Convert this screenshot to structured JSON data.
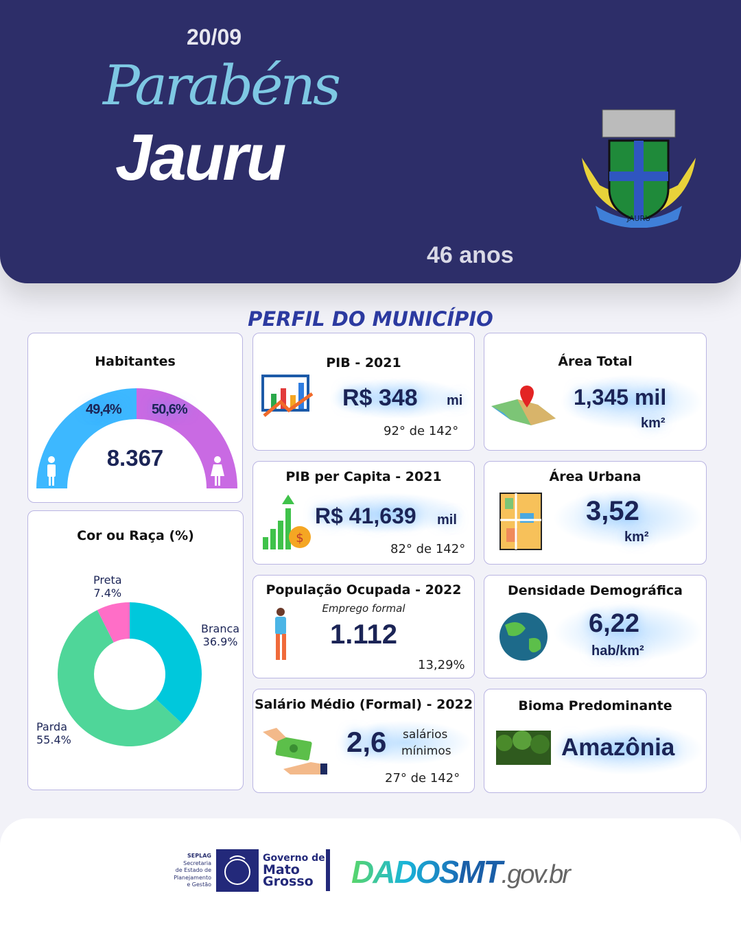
{
  "header": {
    "date": "20/09",
    "greeting": "Parabéns",
    "city": "Jauru",
    "anniversary": "46 anos",
    "crest_text": "JAURU"
  },
  "section_title": "PERFIL DO MUNICÍPIO",
  "habitantes": {
    "title": "Habitantes",
    "total": "8.367",
    "male_pct_label": "49,4%",
    "female_pct_label": "50,6%",
    "male_pct": 49.4,
    "female_pct": 50.6,
    "colors": {
      "male": "#3db8ff",
      "female": "#c96ae3"
    }
  },
  "raca": {
    "title": "Cor ou Raça (%)",
    "chart_data": {
      "type": "pie",
      "donut": true,
      "categories": [
        "Branca",
        "Parda",
        "Preta"
      ],
      "values": [
        36.9,
        55.4,
        7.4
      ],
      "labels": [
        "36.9%",
        "55.4%",
        "7.4%"
      ],
      "colors": [
        "#00c8dc",
        "#4fd699",
        "#ff6ec7"
      ]
    }
  },
  "pib": {
    "title": "PIB - 2021",
    "value": "R$ 348",
    "unit": "mi",
    "rank": "92°  de 142°"
  },
  "pib_capita": {
    "title": "PIB per Capita - 2021",
    "value": "R$ 41,639",
    "unit": "mil",
    "rank": "82° de 142°"
  },
  "populacao": {
    "title": "População  Ocupada - 2022",
    "subtitle": "Emprego formal",
    "value": "1.112",
    "pct": "13,29%"
  },
  "salario": {
    "title": "Salário Médio (Formal) - 2022",
    "value": "2,6",
    "unit1": "salários",
    "unit2": "mínimos",
    "rank": "27° de 142°"
  },
  "area_total": {
    "title": "Área Total",
    "value": "1,345 mil",
    "unit": "km²"
  },
  "area_urbana": {
    "title": "Área Urbana",
    "value": "3,52",
    "unit": "km²"
  },
  "densidade": {
    "title": "Densidade Demográfica",
    "value": "6,22",
    "unit": "hab/km²"
  },
  "bioma": {
    "title": "Bioma Predominante",
    "value": "Amazônia"
  },
  "footer": {
    "seplag": [
      "SEPLAG",
      "Secretaria",
      "de Estado de",
      "Planejamento",
      "e Gestão"
    ],
    "gov": [
      "Governo de",
      "Mato",
      "Grosso"
    ],
    "dados": "DADOS",
    "mt": "MT",
    "gov_br": ".gov.br"
  }
}
